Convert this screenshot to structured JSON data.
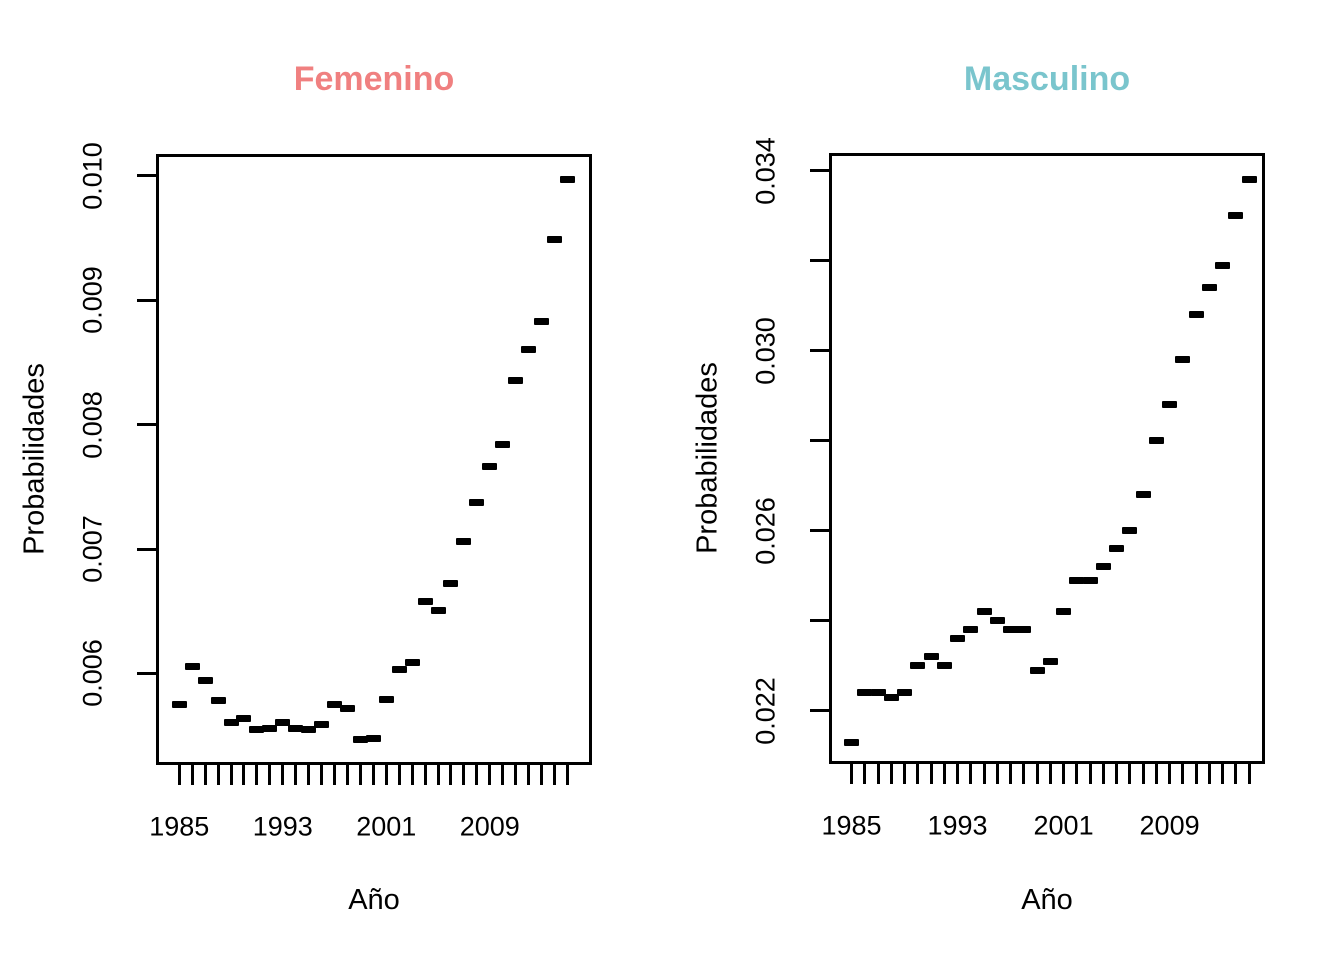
{
  "figure": {
    "background": "#ffffff",
    "text_color": "#000000"
  },
  "chart_data": [
    {
      "type": "scatter",
      "title": "Femenino",
      "title_color": "#F08080",
      "xlabel": "Año",
      "ylabel": "Probabilidades",
      "marker": "horizontal-dash",
      "marker_color": "#000000",
      "grid": false,
      "x": [
        1985,
        1986,
        1987,
        1988,
        1989,
        1990,
        1991,
        1992,
        1993,
        1994,
        1995,
        1996,
        1997,
        1998,
        1999,
        2000,
        2001,
        2002,
        2003,
        2004,
        2005,
        2006,
        2007,
        2008,
        2009,
        2010,
        2011,
        2012,
        2013,
        2014,
        2015
      ],
      "values": [
        0.00575,
        0.00606,
        0.00594,
        0.00578,
        0.00561,
        0.00564,
        0.00555,
        0.00556,
        0.00561,
        0.00556,
        0.00555,
        0.00559,
        0.00575,
        0.00572,
        0.00547,
        0.00548,
        0.00579,
        0.00603,
        0.00609,
        0.00658,
        0.00651,
        0.00672,
        0.00706,
        0.00737,
        0.00766,
        0.00784,
        0.00835,
        0.0086,
        0.00883,
        0.00949,
        0.00997
      ],
      "ylim": [
        0.005265,
        0.010173
      ],
      "xlim": [
        1983.2,
        2016.9
      ],
      "yticks": [
        0.006,
        0.007,
        0.008,
        0.009,
        0.01
      ],
      "ytick_labels": [
        "0.006",
        "0.007",
        "0.008",
        "0.009",
        "0.010"
      ],
      "xticks_range": [
        1985,
        2015
      ],
      "xticks_labeled": [
        1985,
        1993,
        2001,
        2009
      ],
      "xtick_labels": [
        "1985",
        "1993",
        "2001",
        "2009"
      ]
    },
    {
      "type": "scatter",
      "title": "Masculino",
      "title_color": "#7AC5CD",
      "xlabel": "Año",
      "ylabel": "Probabilidades",
      "marker": "horizontal-dash",
      "marker_color": "#000000",
      "grid": false,
      "x": [
        1985,
        1986,
        1987,
        1988,
        1989,
        1990,
        1991,
        1992,
        1993,
        1994,
        1995,
        1996,
        1997,
        1998,
        1999,
        2000,
        2001,
        2002,
        2003,
        2004,
        2005,
        2006,
        2007,
        2008,
        2009,
        2010,
        2011,
        2012,
        2013,
        2014,
        2015
      ],
      "values": [
        0.0213,
        0.0224,
        0.0224,
        0.0223,
        0.0224,
        0.023,
        0.0232,
        0.023,
        0.0236,
        0.0238,
        0.0242,
        0.024,
        0.0238,
        0.0238,
        0.0229,
        0.0231,
        0.0242,
        0.0249,
        0.0249,
        0.0252,
        0.0256,
        0.026,
        0.0268,
        0.028,
        0.0288,
        0.0298,
        0.0308,
        0.0314,
        0.0319,
        0.033,
        0.0338
      ],
      "ylim": [
        0.020822,
        0.0344
      ],
      "xlim": [
        1983.3,
        2016.2
      ],
      "yticks": [
        0.022,
        0.024,
        0.026,
        0.028,
        0.03,
        0.032,
        0.034
      ],
      "ytick_labels": [
        "0.022",
        "",
        "0.026",
        "",
        "0.030",
        "",
        "0.034"
      ],
      "xticks_range": [
        1985,
        2015
      ],
      "xticks_labeled": [
        1985,
        1993,
        2001,
        2009
      ],
      "xtick_labels": [
        "1985",
        "1993",
        "2001",
        "2009"
      ]
    }
  ]
}
